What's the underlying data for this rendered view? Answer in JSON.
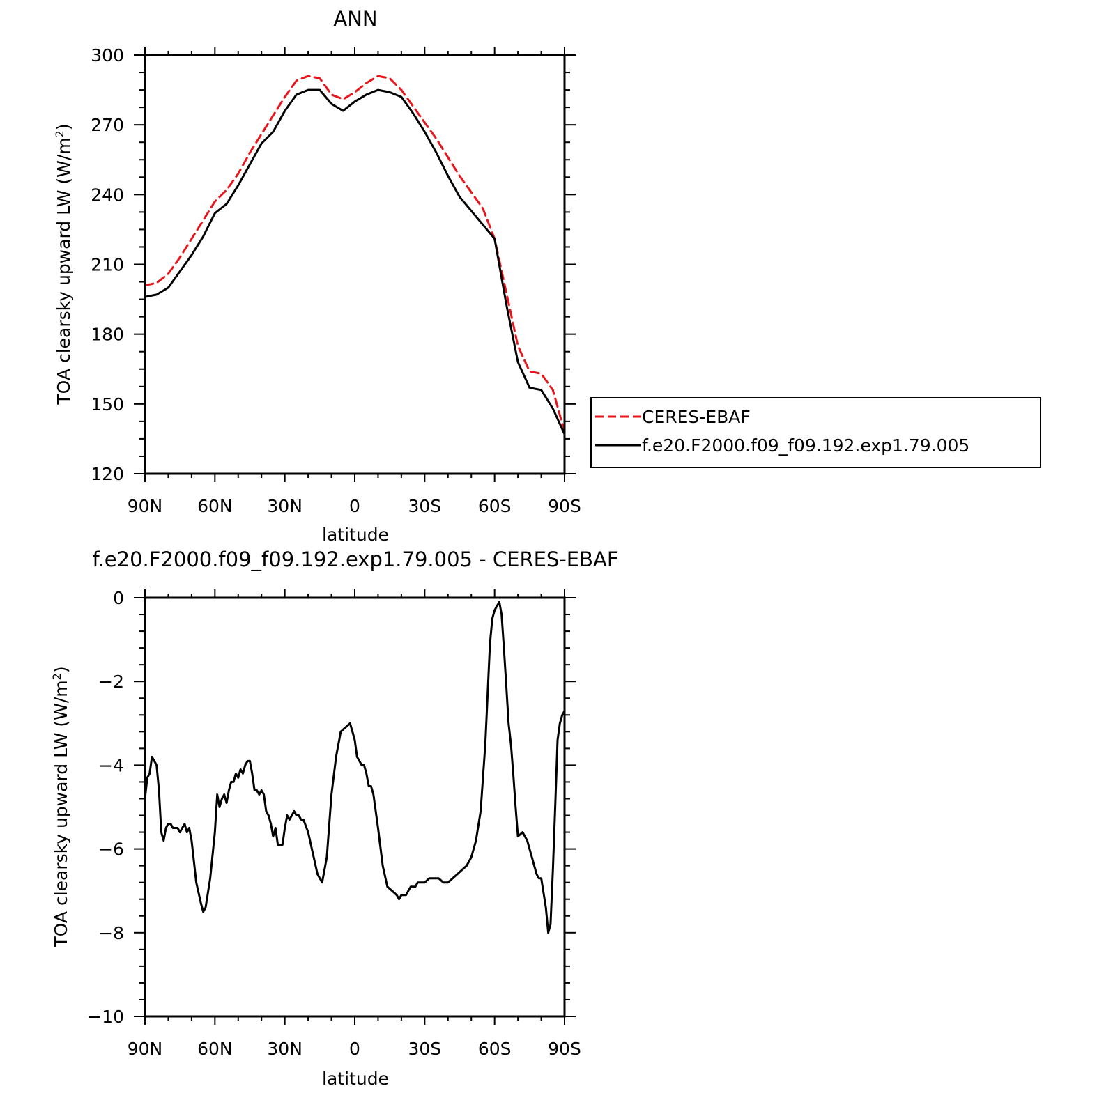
{
  "colors": {
    "obs": "#e8151b",
    "model": "#000000",
    "axis": "#000000",
    "background": "#ffffff"
  },
  "chart_data": [
    {
      "type": "line",
      "title": "ANN",
      "xlabel": "latitude",
      "ylabel_main": "TOA clearsky upward LW (W/m",
      "ylabel_sup": "2",
      "ylabel_close": ")",
      "xlim": [
        90,
        -90
      ],
      "ylim": [
        120,
        300
      ],
      "x_ticks": [
        90,
        60,
        30,
        0,
        -30,
        -60,
        -90
      ],
      "x_tick_labels": [
        "90N",
        "60N",
        "30N",
        "0",
        "30S",
        "60S",
        "90S"
      ],
      "y_ticks": [
        120,
        150,
        180,
        210,
        240,
        270,
        300
      ],
      "y_tick_labels": [
        "120",
        "150",
        "180",
        "210",
        "240",
        "270",
        "300"
      ],
      "grid": false,
      "legend_position": "right",
      "series": [
        {
          "name": "CERES-EBAF",
          "style": "dashed",
          "color": "#e8151b",
          "x": [
            90,
            85,
            80,
            75,
            70,
            65,
            60,
            55,
            50,
            45,
            40,
            35,
            30,
            25,
            20,
            15,
            10,
            5,
            0,
            -5,
            -10,
            -15,
            -20,
            -25,
            -30,
            -35,
            -40,
            -45,
            -50,
            -55,
            -60,
            -65,
            -70,
            -75,
            -80,
            -85,
            -90
          ],
          "values": [
            201,
            202,
            206,
            213,
            221,
            229,
            237,
            242,
            249,
            258,
            266,
            274,
            282,
            289,
            291,
            290,
            283,
            281,
            284,
            288,
            291,
            290,
            285,
            278,
            271,
            264,
            256,
            248,
            241,
            234,
            221,
            198,
            175,
            164,
            163,
            156,
            138
          ]
        },
        {
          "name": "f.e20.F2000.f09_f09.192.exp1.79.005",
          "style": "solid",
          "color": "#000000",
          "x": [
            90,
            85,
            80,
            75,
            70,
            65,
            60,
            55,
            50,
            45,
            40,
            35,
            30,
            25,
            20,
            15,
            10,
            5,
            0,
            -5,
            -10,
            -15,
            -20,
            -25,
            -30,
            -35,
            -40,
            -45,
            -50,
            -55,
            -60,
            -65,
            -70,
            -75,
            -80,
            -85,
            -90
          ],
          "values": [
            196,
            197,
            200,
            207,
            214,
            222,
            232,
            236,
            244,
            253,
            262,
            267,
            276,
            283,
            285,
            285,
            279,
            276,
            280,
            283,
            285,
            284,
            282,
            275,
            267,
            258,
            248,
            239,
            233,
            227,
            221,
            193,
            168,
            157,
            156,
            148,
            137
          ]
        }
      ]
    },
    {
      "type": "line",
      "title": "f.e20.F2000.f09_f09.192.exp1.79.005 - CERES-EBAF",
      "xlabel": "latitude",
      "ylabel_main": "TOA clearsky upward LW (W/m",
      "ylabel_sup": "2",
      "ylabel_close": ")",
      "xlim": [
        90,
        -90
      ],
      "ylim": [
        -10,
        0
      ],
      "x_ticks": [
        90,
        60,
        30,
        0,
        -30,
        -60,
        -90
      ],
      "x_tick_labels": [
        "90N",
        "60N",
        "30N",
        "0",
        "30S",
        "60S",
        "90S"
      ],
      "y_ticks": [
        -10,
        -8,
        -6,
        -4,
        -2,
        0
      ],
      "y_tick_labels": [
        "−10",
        "−8",
        "−6",
        "−4",
        "−2",
        "0"
      ],
      "grid": false,
      "series": [
        {
          "name": "",
          "style": "solid",
          "color": "#000000",
          "x": [
            90,
            89,
            88,
            87,
            86,
            85,
            84,
            83,
            82,
            81,
            80,
            79,
            78,
            77,
            76,
            75,
            74,
            73,
            72,
            71,
            70,
            68,
            66,
            65,
            64,
            62,
            60,
            59,
            58,
            57,
            56,
            55,
            54,
            53,
            52,
            51,
            50,
            49,
            48,
            47,
            46,
            45,
            44,
            43,
            42,
            41,
            40,
            39,
            38,
            37,
            36,
            35,
            34,
            33,
            32,
            31,
            30,
            29,
            28,
            27,
            26,
            25,
            24,
            23,
            22,
            20,
            18,
            16,
            14,
            12,
            10,
            8,
            6,
            4,
            2,
            1,
            0,
            -1,
            -2,
            -3,
            -4,
            -5,
            -6,
            -7,
            -8,
            -10,
            -12,
            -14,
            -16,
            -18,
            -19,
            -20,
            -21,
            -22,
            -23,
            -24,
            -25,
            -26,
            -27,
            -28,
            -29,
            -30,
            -32,
            -34,
            -36,
            -38,
            -40,
            -42,
            -44,
            -46,
            -48,
            -50,
            -52,
            -54,
            -56,
            -58,
            -59,
            -60,
            -61,
            -62,
            -63,
            -64,
            -65,
            -66,
            -67,
            -68,
            -69,
            -70,
            -72,
            -74,
            -75,
            -76,
            -77,
            -78,
            -79,
            -80,
            -82,
            -83,
            -84,
            -85,
            -86,
            -87,
            -88,
            -89,
            -90
          ],
          "values": [
            -4.8,
            -4.3,
            -4.2,
            -3.8,
            -3.9,
            -4.0,
            -4.6,
            -5.6,
            -5.8,
            -5.5,
            -5.4,
            -5.4,
            -5.5,
            -5.5,
            -5.5,
            -5.6,
            -5.5,
            -5.4,
            -5.6,
            -5.5,
            -5.8,
            -6.8,
            -7.3,
            -7.5,
            -7.4,
            -6.7,
            -5.6,
            -4.7,
            -5.0,
            -4.8,
            -4.7,
            -4.9,
            -4.6,
            -4.4,
            -4.4,
            -4.2,
            -4.3,
            -4.1,
            -4.2,
            -4.0,
            -3.9,
            -3.9,
            -4.2,
            -4.6,
            -4.6,
            -4.7,
            -4.6,
            -4.7,
            -5.1,
            -5.2,
            -5.4,
            -5.7,
            -5.5,
            -5.9,
            -5.9,
            -5.9,
            -5.5,
            -5.2,
            -5.3,
            -5.2,
            -5.1,
            -5.2,
            -5.2,
            -5.3,
            -5.3,
            -5.6,
            -6.1,
            -6.6,
            -6.8,
            -6.2,
            -4.7,
            -3.8,
            -3.2,
            -3.1,
            -3.0,
            -3.2,
            -3.4,
            -3.8,
            -3.9,
            -4.0,
            -4.0,
            -4.2,
            -4.5,
            -4.5,
            -4.7,
            -5.5,
            -6.4,
            -6.9,
            -7.0,
            -7.1,
            -7.2,
            -7.1,
            -7.1,
            -7.1,
            -7.0,
            -6.9,
            -6.9,
            -6.9,
            -6.8,
            -6.8,
            -6.8,
            -6.8,
            -6.7,
            -6.7,
            -6.7,
            -6.8,
            -6.8,
            -6.7,
            -6.6,
            -6.5,
            -6.4,
            -6.2,
            -5.8,
            -5.1,
            -3.5,
            -1.1,
            -0.5,
            -0.3,
            -0.2,
            -0.1,
            -0.4,
            -1.2,
            -2.1,
            -3.0,
            -3.5,
            -4.2,
            -5.0,
            -5.7,
            -5.6,
            -5.8,
            -6.0,
            -6.2,
            -6.4,
            -6.6,
            -6.7,
            -6.7,
            -7.4,
            -8.0,
            -7.8,
            -6.5,
            -5.0,
            -3.4,
            -3.0,
            -2.8,
            -2.7
          ]
        }
      ]
    }
  ]
}
